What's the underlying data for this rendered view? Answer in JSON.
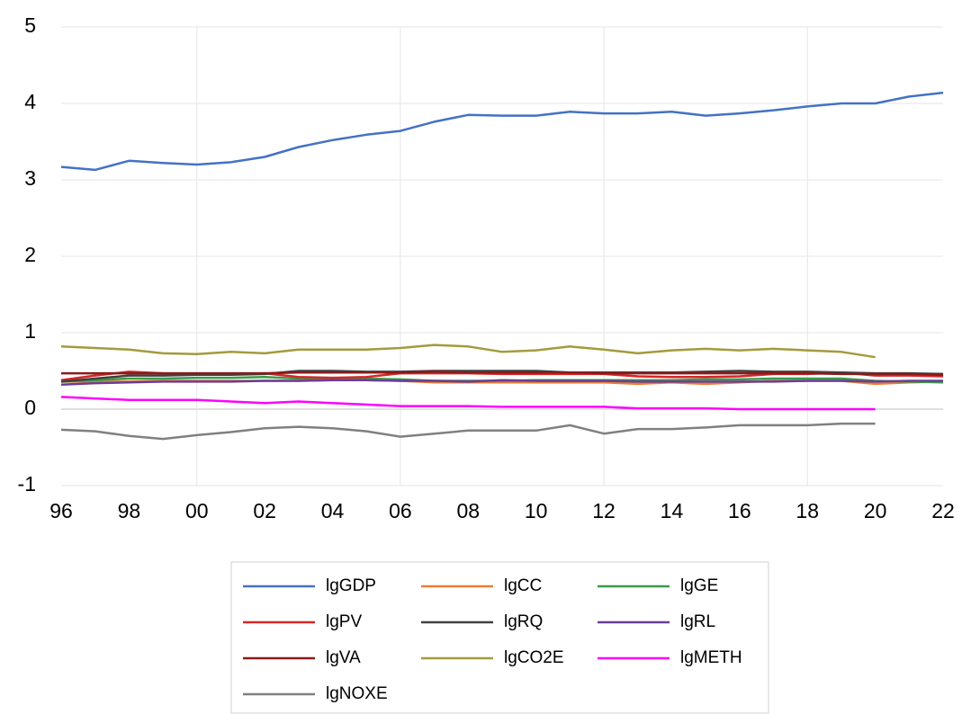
{
  "chart_data": {
    "type": "line",
    "categories": [
      "96",
      null,
      "98",
      null,
      "00",
      null,
      "02",
      null,
      "04",
      null,
      "06",
      null,
      "08",
      null,
      "10",
      null,
      "12",
      null,
      "14",
      null,
      "16",
      null,
      "18",
      null,
      "20",
      null,
      "22"
    ],
    "ylim": [
      -1,
      5
    ],
    "yticks": [
      -1,
      0,
      1,
      2,
      3,
      4,
      5
    ],
    "grid": true,
    "series": [
      {
        "name": "lgGDP",
        "color": "#4472c4",
        "values": [
          3.17,
          3.13,
          3.25,
          3.22,
          3.2,
          3.23,
          3.3,
          3.43,
          3.52,
          3.59,
          3.64,
          3.76,
          3.85,
          3.84,
          3.84,
          3.89,
          3.87,
          3.87,
          3.89,
          3.84,
          3.87,
          3.91,
          3.96,
          4.0,
          4.0,
          4.09,
          4.14
        ]
      },
      {
        "name": "lgCC",
        "color": "#ed7d31",
        "values": [
          0.36,
          0.36,
          0.36,
          0.37,
          0.37,
          0.37,
          0.37,
          0.37,
          0.38,
          0.38,
          0.37,
          0.35,
          0.35,
          0.35,
          0.35,
          0.35,
          0.35,
          0.33,
          0.35,
          0.33,
          0.35,
          0.37,
          0.37,
          0.37,
          0.33,
          0.35,
          0.36
        ]
      },
      {
        "name": "lgGE",
        "color": "#3a9b48",
        "values": [
          0.36,
          0.38,
          0.4,
          0.4,
          0.41,
          0.41,
          0.42,
          0.4,
          0.4,
          0.4,
          0.39,
          0.37,
          0.37,
          0.37,
          0.38,
          0.38,
          0.38,
          0.38,
          0.38,
          0.39,
          0.39,
          0.4,
          0.4,
          0.4,
          0.37,
          0.36,
          0.35
        ]
      },
      {
        "name": "lgPV",
        "color": "#d62728",
        "values": [
          0.38,
          0.44,
          0.49,
          0.47,
          0.46,
          0.46,
          0.47,
          0.42,
          0.41,
          0.42,
          0.47,
          0.47,
          0.47,
          0.46,
          0.46,
          0.46,
          0.46,
          0.43,
          0.42,
          0.42,
          0.43,
          0.46,
          0.46,
          0.48,
          0.44,
          0.44,
          0.43
        ]
      },
      {
        "name": "lgRQ",
        "color": "#404040",
        "values": [
          0.36,
          0.4,
          0.44,
          0.44,
          0.45,
          0.45,
          0.46,
          0.5,
          0.5,
          0.49,
          0.49,
          0.5,
          0.5,
          0.5,
          0.5,
          0.48,
          0.48,
          0.48,
          0.48,
          0.49,
          0.5,
          0.49,
          0.49,
          0.48,
          0.47,
          0.47,
          0.46
        ]
      },
      {
        "name": "lgRL",
        "color": "#6a3d9a",
        "values": [
          0.32,
          0.34,
          0.35,
          0.36,
          0.36,
          0.36,
          0.37,
          0.37,
          0.38,
          0.38,
          0.37,
          0.37,
          0.36,
          0.38,
          0.37,
          0.37,
          0.37,
          0.36,
          0.36,
          0.36,
          0.36,
          0.36,
          0.37,
          0.37,
          0.36,
          0.37,
          0.37
        ]
      },
      {
        "name": "lgVA",
        "color": "#8b1a1a",
        "values": [
          0.47,
          0.47,
          0.47,
          0.47,
          0.47,
          0.47,
          0.47,
          0.48,
          0.48,
          0.48,
          0.48,
          0.49,
          0.48,
          0.48,
          0.48,
          0.48,
          0.47,
          0.47,
          0.47,
          0.47,
          0.47,
          0.47,
          0.47,
          0.46,
          0.46,
          0.46,
          0.45
        ]
      },
      {
        "name": "lgCO2E",
        "color": "#a39b3c",
        "values": [
          0.82,
          0.8,
          0.78,
          0.73,
          0.72,
          0.75,
          0.73,
          0.78,
          0.78,
          0.78,
          0.8,
          0.84,
          0.82,
          0.75,
          0.77,
          0.82,
          0.78,
          0.73,
          0.77,
          0.79,
          0.77,
          0.79,
          0.77,
          0.75,
          0.68,
          null,
          null
        ]
      },
      {
        "name": "lgMETH",
        "color": "#ff00ff",
        "values": [
          0.16,
          0.14,
          0.12,
          0.12,
          0.12,
          0.1,
          0.08,
          0.1,
          0.08,
          0.06,
          0.04,
          0.04,
          0.04,
          0.03,
          0.03,
          0.03,
          0.03,
          0.01,
          0.01,
          0.01,
          0,
          0,
          0,
          0,
          0,
          null,
          null
        ]
      },
      {
        "name": "lgNOXE",
        "color": "#808080",
        "values": [
          -0.27,
          -0.29,
          -0.35,
          -0.39,
          -0.34,
          -0.3,
          -0.25,
          -0.23,
          -0.25,
          -0.29,
          -0.36,
          -0.32,
          -0.28,
          -0.28,
          -0.28,
          -0.21,
          -0.32,
          -0.26,
          -0.26,
          -0.24,
          -0.21,
          -0.21,
          -0.21,
          -0.19,
          -0.19,
          null,
          null
        ]
      }
    ]
  }
}
